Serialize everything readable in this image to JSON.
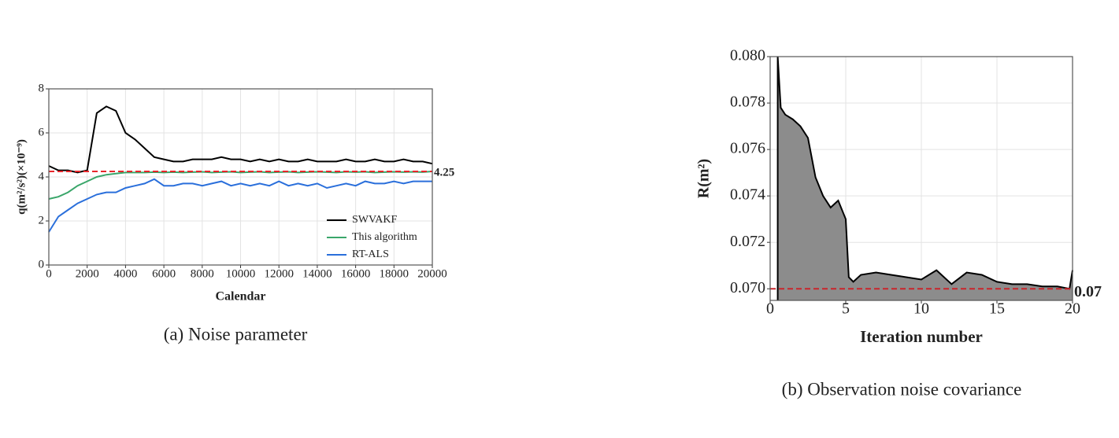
{
  "chart_data": [
    {
      "type": "line",
      "caption": "(a) Noise parameter",
      "xlabel": "Calendar",
      "ylabel": "q(m²/s²)(×10⁻⁹)",
      "x": [
        0,
        500,
        1000,
        1500,
        2000,
        2500,
        3000,
        3500,
        4000,
        4500,
        5000,
        5500,
        6000,
        6500,
        7000,
        7500,
        8000,
        8500,
        9000,
        9500,
        10000,
        10500,
        11000,
        11500,
        12000,
        12500,
        13000,
        13500,
        14000,
        14500,
        15000,
        15500,
        16000,
        16500,
        17000,
        17500,
        18000,
        18500,
        19000,
        19500,
        20000
      ],
      "series": [
        {
          "name": "SWVAKF",
          "color": "#000000",
          "values": [
            4.5,
            4.3,
            4.3,
            4.2,
            4.3,
            6.9,
            7.2,
            7.0,
            6.0,
            5.7,
            5.3,
            4.9,
            4.8,
            4.7,
            4.7,
            4.8,
            4.8,
            4.8,
            4.9,
            4.8,
            4.8,
            4.7,
            4.8,
            4.7,
            4.8,
            4.7,
            4.7,
            4.8,
            4.7,
            4.7,
            4.7,
            4.8,
            4.7,
            4.7,
            4.8,
            4.7,
            4.7,
            4.8,
            4.7,
            4.7,
            4.6
          ]
        },
        {
          "name": "This algorithm",
          "color": "#3aa66a",
          "values": [
            3.0,
            3.1,
            3.3,
            3.6,
            3.8,
            4.0,
            4.1,
            4.15,
            4.2,
            4.2,
            4.2,
            4.22,
            4.2,
            4.22,
            4.2,
            4.22,
            4.23,
            4.2,
            4.22,
            4.23,
            4.2,
            4.22,
            4.23,
            4.2,
            4.22,
            4.23,
            4.2,
            4.22,
            4.23,
            4.22,
            4.2,
            4.23,
            4.22,
            4.23,
            4.2,
            4.22,
            4.23,
            4.22,
            4.23,
            4.22,
            4.25
          ]
        },
        {
          "name": "RT-ALS",
          "color": "#2a6fdb",
          "values": [
            1.5,
            2.2,
            2.5,
            2.8,
            3.0,
            3.2,
            3.3,
            3.3,
            3.5,
            3.6,
            3.7,
            3.9,
            3.6,
            3.6,
            3.7,
            3.7,
            3.6,
            3.7,
            3.8,
            3.6,
            3.7,
            3.6,
            3.7,
            3.6,
            3.8,
            3.6,
            3.7,
            3.6,
            3.7,
            3.5,
            3.6,
            3.7,
            3.6,
            3.8,
            3.7,
            3.7,
            3.8,
            3.7,
            3.8,
            3.8,
            3.8
          ]
        }
      ],
      "xlim": [
        0,
        20000
      ],
      "xticks": [
        0,
        2000,
        4000,
        6000,
        8000,
        10000,
        12000,
        14000,
        16000,
        18000,
        20000
      ],
      "ylim": [
        0,
        8
      ],
      "yticks": [
        0,
        2,
        4,
        6,
        8
      ],
      "grid": true,
      "legend": "lower right",
      "reference": 4.25,
      "reference_color": "#e8262b"
    },
    {
      "type": "area",
      "caption": "(b) Observation noise covariance",
      "xlabel": "Iteration number",
      "ylabel": "R(m²)",
      "x": [
        0.5,
        0.5,
        0.7,
        1,
        1.5,
        2,
        2.5,
        3,
        3.5,
        4,
        4.5,
        5,
        5.2,
        5.5,
        6,
        7,
        8,
        9,
        10,
        11,
        12,
        13,
        14,
        15,
        16,
        17,
        18,
        19,
        19.8,
        20
      ],
      "series": [
        {
          "color": "#000000",
          "fill": "#8c8c8c",
          "values": [
            0.0695,
            0.08,
            0.0778,
            0.0775,
            0.0773,
            0.077,
            0.0765,
            0.0748,
            0.074,
            0.0735,
            0.0738,
            0.073,
            0.0705,
            0.0703,
            0.0706,
            0.0707,
            0.0706,
            0.0705,
            0.0704,
            0.0708,
            0.0702,
            0.0707,
            0.0706,
            0.0703,
            0.0702,
            0.0702,
            0.0701,
            0.0701,
            0.07,
            0.0708
          ]
        }
      ],
      "xlim": [
        0,
        20
      ],
      "xticks": [
        0,
        5,
        10,
        15,
        20
      ],
      "ylim": [
        0.0695,
        0.08
      ],
      "yticks": [
        {
          "value": 0.07,
          "label": "0.070"
        },
        {
          "value": 0.072,
          "label": "0.072"
        },
        {
          "value": 0.074,
          "label": "0.074"
        },
        {
          "value": 0.076,
          "label": "0.076"
        },
        {
          "value": 0.078,
          "label": "0.078"
        },
        {
          "value": 0.08,
          "label": "0.080"
        }
      ],
      "grid": true,
      "reference": 0.07,
      "reference_color": "#c9252b"
    }
  ]
}
